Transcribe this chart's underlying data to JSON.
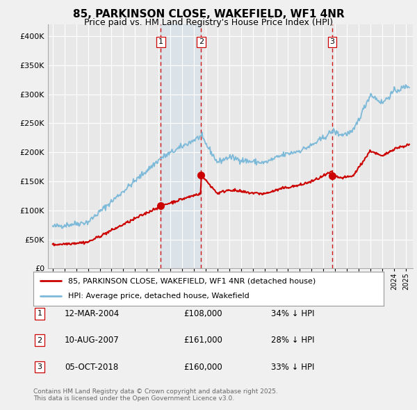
{
  "title": "85, PARKINSON CLOSE, WAKEFIELD, WF1 4NR",
  "subtitle": "Price paid vs. HM Land Registry's House Price Index (HPI)",
  "legend_line1": "85, PARKINSON CLOSE, WAKEFIELD, WF1 4NR (detached house)",
  "legend_line2": "HPI: Average price, detached house, Wakefield",
  "footer1": "Contains HM Land Registry data © Crown copyright and database right 2025.",
  "footer2": "This data is licensed under the Open Government Licence v3.0.",
  "sale_dates": [
    "12-MAR-2004",
    "10-AUG-2007",
    "05-OCT-2018"
  ],
  "sale_prices": [
    108000,
    161000,
    160000
  ],
  "sale_hpi_pct": [
    "34% ↓ HPI",
    "28% ↓ HPI",
    "33% ↓ HPI"
  ],
  "sale_labels": [
    "1",
    "2",
    "3"
  ],
  "hpi_color": "#7db9d8",
  "sale_color": "#cc0000",
  "vline_color": "#cc0000",
  "fill_color": "#d0e8f5",
  "ylim": [
    0,
    420000
  ],
  "yticks": [
    0,
    50000,
    100000,
    150000,
    200000,
    250000,
    300000,
    350000,
    400000
  ],
  "bg_color": "#f0f0f0",
  "plot_bg_color": "#e8e8e8",
  "grid_color": "#ffffff"
}
